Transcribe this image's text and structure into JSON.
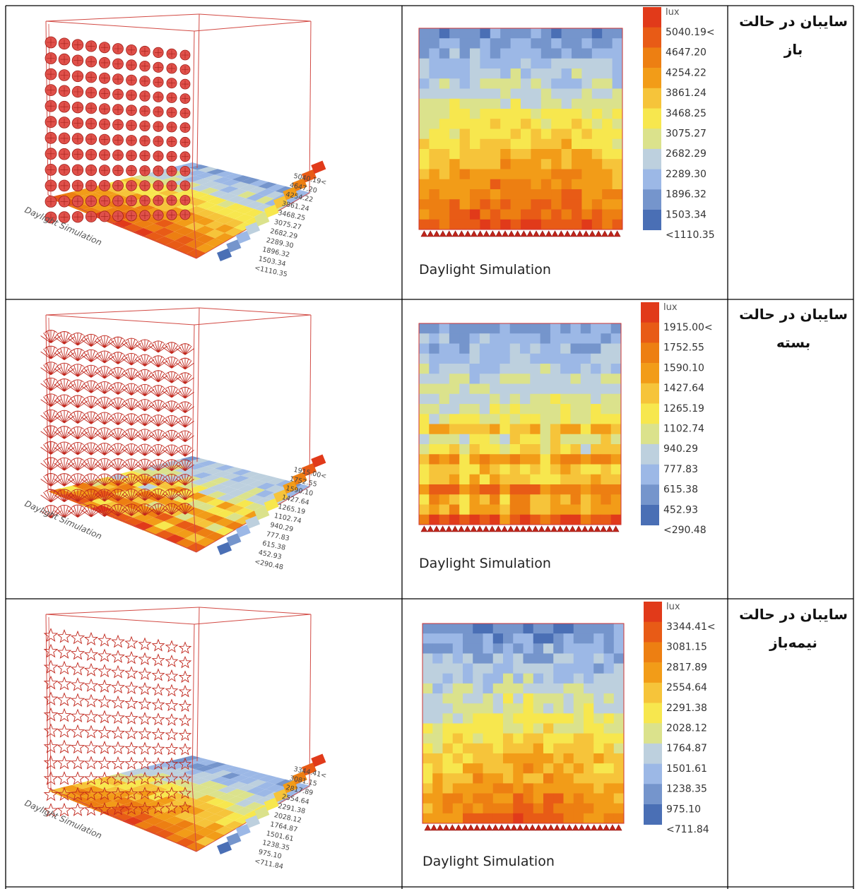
{
  "rows": [
    {
      "label_line1": "سایبان در حالت",
      "label_line2": "باز",
      "caption": "Daylight Simulation",
      "unit": "lux",
      "legend_values": [
        "5040.19<",
        "4647.20",
        "4254.22",
        "3861.24",
        "3468.25",
        "3075.27",
        "2682.29",
        "2289.30",
        "1896.32",
        "1503.34",
        "<1110.35"
      ],
      "shading_icon": "circular-shade-module-icon"
    },
    {
      "label_line1": "سایبان در حالت",
      "label_line2": "بسته",
      "caption": "Daylight Simulation",
      "unit": "lux",
      "legend_values": [
        "1915.00<",
        "1752.55",
        "1590.10",
        "1427.64",
        "1265.19",
        "1102.74",
        "940.29",
        "777.83",
        "615.38",
        "452.93",
        "<290.48"
      ],
      "shading_icon": "closed-fan-shade-module-icon"
    },
    {
      "label_line1": "سایبان در حالت",
      "label_line2": "نیمه‌باز",
      "caption": "Daylight Simulation",
      "unit": "lux",
      "legend_values": [
        "3344.41<",
        "3081.15",
        "2817.89",
        "2554.64",
        "2291.38",
        "2028.12",
        "1764.87",
        "1501.61",
        "1238.35",
        "975.10",
        "<711.84"
      ],
      "shading_icon": "half-open-star-shade-module-icon"
    }
  ],
  "legend_colors": [
    "#e13a1a",
    "#e85b16",
    "#ed7f12",
    "#f29c18",
    "#f6c43a",
    "#f7e74e",
    "#dbe28c",
    "#bdd0de",
    "#9cb8e6",
    "#7595cc",
    "#4a6fb5"
  ]
}
